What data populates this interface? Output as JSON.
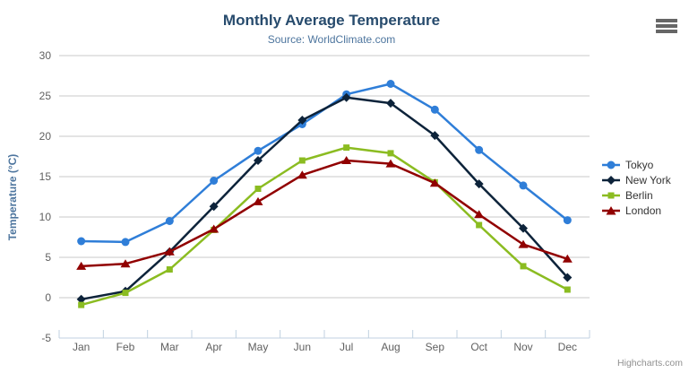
{
  "chart_data": {
    "type": "line",
    "title": "Monthly Average Temperature",
    "subtitle": "Source: WorldClimate.com",
    "ylabel": "Temperature (°C)",
    "xlabel": "",
    "ylim": [
      -5,
      30
    ],
    "yticks": [
      -5,
      0,
      5,
      10,
      15,
      20,
      25,
      30
    ],
    "grid": true,
    "legend_position": "right",
    "categories": [
      "Jan",
      "Feb",
      "Mar",
      "Apr",
      "May",
      "Jun",
      "Jul",
      "Aug",
      "Sep",
      "Oct",
      "Nov",
      "Dec"
    ],
    "series": [
      {
        "name": "Tokyo",
        "color": "#2f7ed8",
        "marker": "circle",
        "values": [
          7.0,
          6.9,
          9.5,
          14.5,
          18.2,
          21.5,
          25.2,
          26.5,
          23.3,
          18.3,
          13.9,
          9.6
        ]
      },
      {
        "name": "New York",
        "color": "#0d233a",
        "marker": "diamond",
        "values": [
          -0.2,
          0.8,
          5.7,
          11.3,
          17.0,
          22.0,
          24.8,
          24.1,
          20.1,
          14.1,
          8.6,
          2.5
        ]
      },
      {
        "name": "Berlin",
        "color": "#8bbc21",
        "marker": "square",
        "values": [
          -0.9,
          0.6,
          3.5,
          8.4,
          13.5,
          17.0,
          18.6,
          17.9,
          14.3,
          9.0,
          3.9,
          1.0
        ]
      },
      {
        "name": "London",
        "color": "#910000",
        "marker": "triangle",
        "values": [
          3.9,
          4.2,
          5.7,
          8.5,
          11.9,
          15.2,
          17.0,
          16.6,
          14.2,
          10.3,
          6.6,
          4.8
        ]
      }
    ]
  },
  "ui": {
    "credits": "Highcharts.com",
    "menu_icon": "hamburger-icon"
  },
  "theme": {
    "title_color": "#274b6d",
    "subtitle_color": "#4d759e",
    "axis_title_color": "#4d759e",
    "tick_label_color": "#606060",
    "grid_color": "#c8c8c8",
    "axis_line_color": "#c0d0e0",
    "legend_label_color": "#333333",
    "credits_color": "#909090",
    "menu_icon_color": "#666666",
    "background": "#ffffff"
  }
}
